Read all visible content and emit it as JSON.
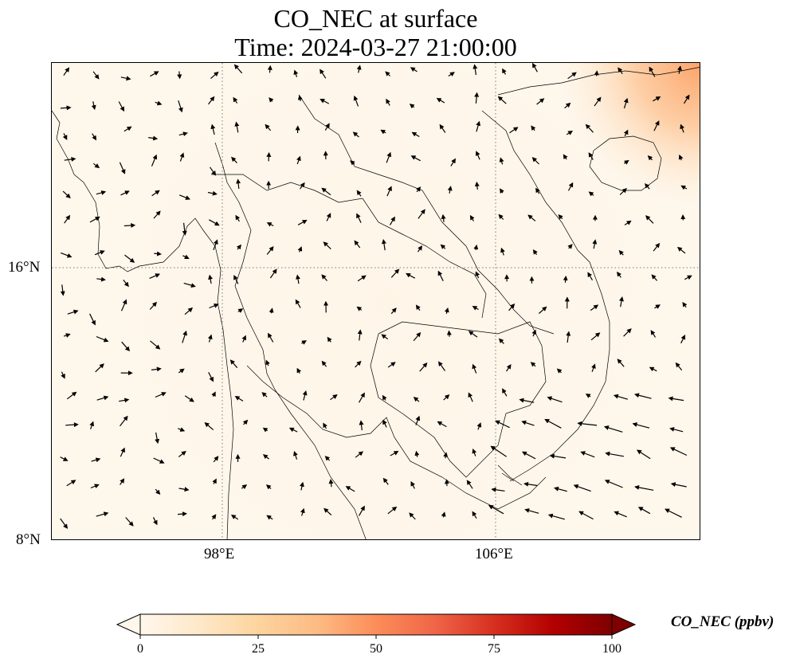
{
  "title": {
    "line1": "CO_NEC at surface",
    "line2": "Time: 2024-03-27 21:00:00"
  },
  "axes": {
    "lon_ticks": [
      "98°E",
      "106°E"
    ],
    "lat_ticks": [
      "16°N",
      "8°N"
    ],
    "lon_range": [
      93.0,
      112.0
    ],
    "lat_range": [
      8.0,
      22.0
    ],
    "grid": "dotted"
  },
  "colorbar": {
    "label": "CO_NEC (ppbv)",
    "ticks": [
      "0",
      "25",
      "50",
      "75",
      "100"
    ],
    "range": [
      0,
      100
    ],
    "extend": "both",
    "colormap": "OrRd",
    "colors": [
      "#fff7ec",
      "#fee8c8",
      "#fdd49e",
      "#fdbb84",
      "#fc8d59",
      "#ef6548",
      "#d7301f",
      "#b30000",
      "#7f0000"
    ]
  },
  "field": {
    "background_value": 3,
    "hotspot": {
      "location": "northeast corner near coast",
      "max_value": 35
    }
  }
}
